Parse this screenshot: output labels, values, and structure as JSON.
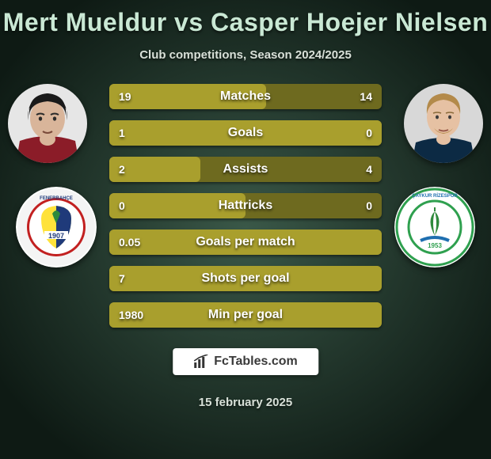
{
  "background": {
    "gradient_inner": "#3a5848",
    "gradient_outer": "#0e1a14",
    "text_color": "#d9e0d9"
  },
  "title": {
    "text": "Mert Mueldur vs Casper Hoejer Nielsen",
    "fontsize": 32,
    "color": "#c9e8d4"
  },
  "subtitle": {
    "text": "Club competitions, Season 2024/2025",
    "fontsize": 15,
    "color": "#d8e0d8"
  },
  "players": {
    "left": {
      "name": "Mert Mueldur",
      "avatar": {
        "skin": "#d9b59a",
        "hair": "#1a1a1a",
        "shirt": "#8b1c28",
        "bg": "#e6e6e6"
      },
      "club_crest": {
        "bg": "#ffffff",
        "stripes": [
          "#ffe23a",
          "#1f3a7a"
        ],
        "inner_badge": "#1f3a7a",
        "inner_fill": "#ffe23a",
        "text_ring": "FENERBAHÇE SPOR KULÜBÜ",
        "year": "1907"
      }
    },
    "right": {
      "name": "Casper Hoejer Nielsen",
      "avatar": {
        "skin": "#e6c1a3",
        "hair": "#b38a4a",
        "shirt": "#0c2a44",
        "bg": "#d8d8d8"
      },
      "club_crest": {
        "bg": "#ffffff",
        "ring": "#2fa04f",
        "leaf": "#2f8a3c",
        "accent": "#1f6fb0",
        "text_ring": "ÇAYKUR RİZESPOR",
        "year": "1953"
      }
    }
  },
  "stats": {
    "bar_bg": "#6e6a1f",
    "bar_fill": "#a99f2d",
    "label_color": "#ffffff",
    "rows": [
      {
        "label": "Matches",
        "left": "19",
        "right": "14",
        "left_share": 0.576
      },
      {
        "label": "Goals",
        "left": "1",
        "right": "0",
        "left_share": 1.0
      },
      {
        "label": "Assists",
        "left": "2",
        "right": "4",
        "left_share": 0.333
      },
      {
        "label": "Hattricks",
        "left": "0",
        "right": "0",
        "left_share": 0.5
      },
      {
        "label": "Goals per match",
        "left": "0.05",
        "right": "",
        "left_share": 1.0
      },
      {
        "label": "Shots per goal",
        "left": "7",
        "right": "",
        "left_share": 1.0
      },
      {
        "label": "Min per goal",
        "left": "1980",
        "right": "",
        "left_share": 1.0
      }
    ]
  },
  "branding": {
    "text": "FcTables.com",
    "bg": "#ffffff",
    "color": "#3a3a3a"
  },
  "date": {
    "text": "15 february 2025",
    "color": "#d8e0d8"
  }
}
